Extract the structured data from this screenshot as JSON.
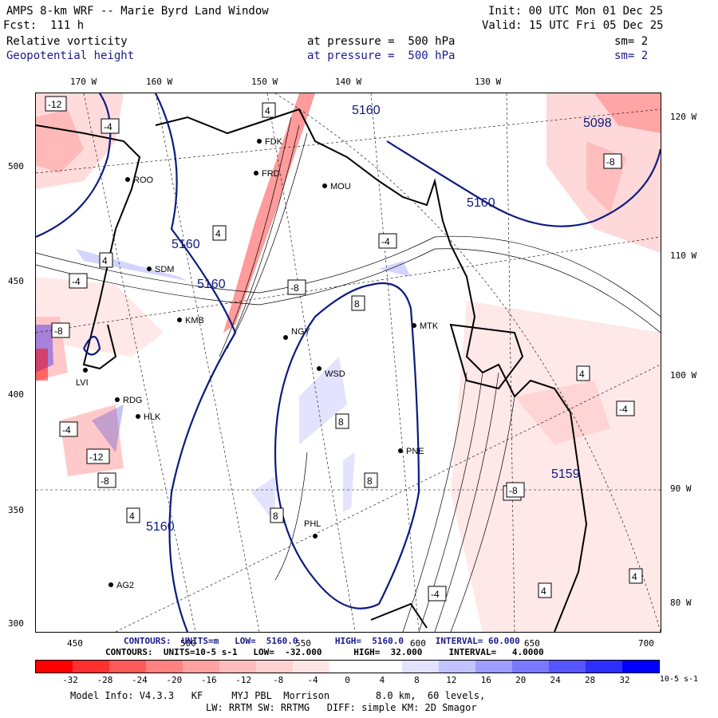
{
  "header": {
    "title": "AMPS 8-km WRF -- Marie Byrd Land Window",
    "fcst": "Fcst:  111 h",
    "init": "Init: 00 UTC Mon 01 Dec 25",
    "valid": "Valid: 15 UTC Fri 05 Dec 25",
    "field1": "Relative vorticity",
    "field1_level": "at pressure =  500 hPa",
    "field1_sm": "sm= 2",
    "field2": "Geopotential height",
    "field2_level": "at pressure =  500 hPa",
    "field2_sm": "sm= 2"
  },
  "axes": {
    "top_longitudes": [
      "170 W",
      "160 W",
      "150 W",
      "140 W",
      "130 W"
    ],
    "right_longitudes": [
      "120 W",
      "110 W",
      "100 W",
      "90 W",
      "80 W"
    ],
    "left_y": [
      "500",
      "450",
      "400",
      "350",
      "300"
    ],
    "bottom_x": [
      "450",
      "500",
      "550",
      "600",
      "650",
      "700"
    ]
  },
  "map": {
    "stations": [
      "FDK",
      "FRD",
      "MOU",
      "ROO",
      "SDM",
      "KMB",
      "NGY",
      "MTK",
      "WSD",
      "LVI",
      "RDG",
      "HLK",
      "PNE",
      "PHL",
      "AG2"
    ],
    "height_contour_labels": [
      "5160",
      "5160",
      "5160",
      "5160",
      "5160",
      "5098",
      "5159"
    ],
    "vorticity_labels": [
      "-12",
      "-4",
      "4",
      "-8",
      "8",
      "4",
      "-4",
      "-8",
      "4",
      "-4",
      "8",
      "-8",
      "4",
      "-4",
      "-8",
      "8",
      "4",
      "-4",
      "-12",
      "-8",
      "4",
      "-4",
      "8",
      "-8",
      "4"
    ],
    "height_color": "#0d1a80",
    "neg_color": "#e8303a",
    "pos_color": "#3a3ad8"
  },
  "contour_info": {
    "height_line": "CONTOURS:  UNITS=m   LOW=  5160.0       HIGH=  5160.0      INTERVAL= 60.000",
    "vort_line": "CONTOURS:  UNITS=10-5 s-1   LOW=  -32.000      HIGH=  32.000     INTERVAL=   4.0000"
  },
  "colorbar": {
    "ticks": [
      "-32",
      "-28",
      "-24",
      "-20",
      "-16",
      "-12",
      "-8",
      "-4",
      "0",
      "4",
      "8",
      "12",
      "16",
      "20",
      "24",
      "28",
      "32"
    ],
    "units": "10-5 s-1",
    "colors": [
      "#ff0000",
      "#ff3030",
      "#ff5a5a",
      "#ff8282",
      "#ffa2a2",
      "#ffbcbc",
      "#ffd2d2",
      "#ffe6e6",
      "#ffffff",
      "#ffffff",
      "#e2e2ff",
      "#c2c2ff",
      "#9e9eff",
      "#7a7aff",
      "#5555ff",
      "#2e2eff",
      "#0000ff"
    ]
  },
  "footer": {
    "model_info": "Model Info: V4.3.3   KF     MYJ PBL  Morrison        8.0 km,  60 levels,",
    "model_info2": "LW: RRTM SW: RRTMG   DIFF: simple KM: 2D Smagor"
  }
}
